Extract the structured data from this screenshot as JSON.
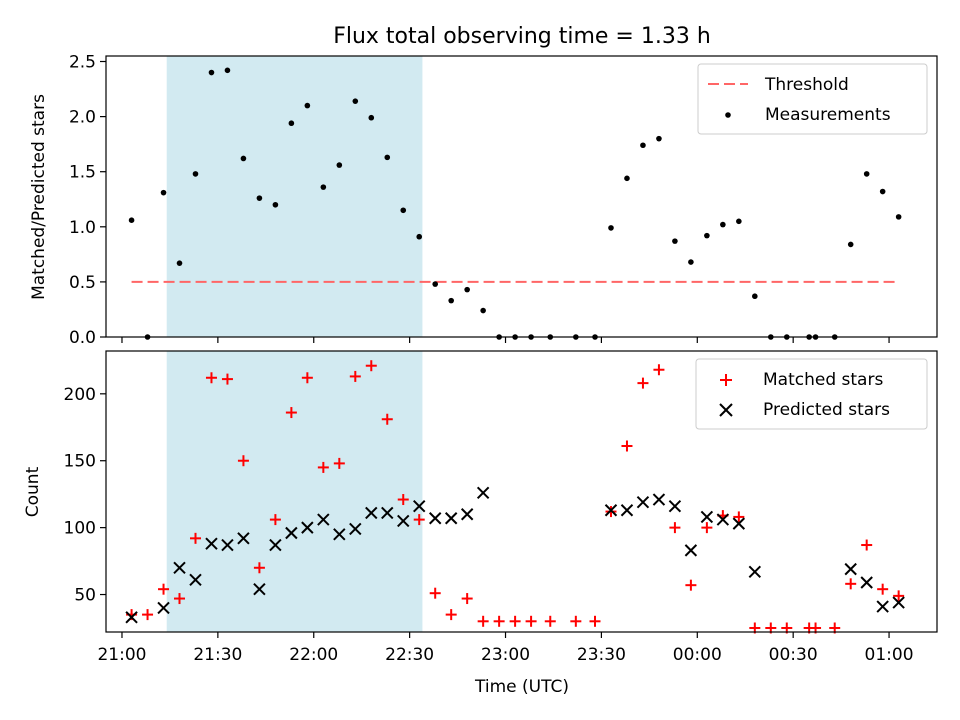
{
  "figure": {
    "title": "Flux total observing time = 1.33 h"
  },
  "colors": {
    "threshold": "#ff6666",
    "measurement": "#000000",
    "matched": "#ff0000",
    "predicted": "#000000",
    "shade": "#add8e6"
  },
  "chart_data": [
    {
      "type": "scatter",
      "ylabel": "Matched/Predicted stars",
      "ylim": [
        0,
        2.55
      ],
      "yticks": [
        "0.0",
        "0.5",
        "1.0",
        "1.5",
        "2.0",
        "2.5"
      ],
      "yticks_values": [
        0,
        0.5,
        1.0,
        1.5,
        2.0,
        2.5
      ],
      "xlim_minutes": [
        1255,
        1515
      ],
      "shaded_region_minutes": [
        1274,
        1354
      ],
      "legend": {
        "position": "top-right",
        "threshold_label": "Threshold",
        "measurements_label": "Measurements"
      },
      "threshold": {
        "value": 0.5,
        "from_minutes": 1263,
        "to_minutes": 1503
      },
      "measurements": [
        [
          1263,
          1.06
        ],
        [
          1268,
          0.0
        ],
        [
          1273,
          1.31
        ],
        [
          1278,
          0.67
        ],
        [
          1283,
          1.48
        ],
        [
          1288,
          2.4
        ],
        [
          1293,
          2.42
        ],
        [
          1298,
          1.62
        ],
        [
          1303,
          1.26
        ],
        [
          1308,
          1.2
        ],
        [
          1313,
          1.94
        ],
        [
          1318,
          2.1
        ],
        [
          1323,
          1.36
        ],
        [
          1328,
          1.56
        ],
        [
          1333,
          2.14
        ],
        [
          1338,
          1.99
        ],
        [
          1343,
          1.63
        ],
        [
          1348,
          1.15
        ],
        [
          1353,
          0.91
        ],
        [
          1358,
          0.48
        ],
        [
          1363,
          0.33
        ],
        [
          1368,
          0.43
        ],
        [
          1373,
          0.24
        ],
        [
          1378,
          0.0
        ],
        [
          1383,
          0.0
        ],
        [
          1388,
          0.0
        ],
        [
          1394,
          0.0
        ],
        [
          1402,
          0.0
        ],
        [
          1408,
          0.0
        ],
        [
          1413,
          0.99
        ],
        [
          1418,
          1.44
        ],
        [
          1423,
          1.74
        ],
        [
          1428,
          1.8
        ],
        [
          1433,
          0.87
        ],
        [
          1438,
          0.68
        ],
        [
          1443,
          0.92
        ],
        [
          1448,
          1.02
        ],
        [
          1453,
          1.05
        ],
        [
          1458,
          0.37
        ],
        [
          1463,
          0.0
        ],
        [
          1468,
          0.0
        ],
        [
          1475,
          0.0
        ],
        [
          1477,
          0.0
        ],
        [
          1483,
          0.0
        ],
        [
          1488,
          0.84
        ],
        [
          1493,
          1.48
        ],
        [
          1498,
          1.32
        ],
        [
          1503,
          1.09
        ]
      ]
    },
    {
      "type": "scatter",
      "xlabel": "Time (UTC)",
      "ylabel": "Count",
      "ylim": [
        22,
        232
      ],
      "yticks": [
        "50",
        "100",
        "150",
        "200"
      ],
      "yticks_values": [
        50,
        100,
        150,
        200
      ],
      "xlim_minutes": [
        1255,
        1515
      ],
      "xticks": [
        "21:00",
        "21:30",
        "22:00",
        "22:30",
        "23:00",
        "23:30",
        "00:00",
        "00:30",
        "01:00"
      ],
      "xticks_minutes": [
        1260,
        1290,
        1320,
        1350,
        1380,
        1410,
        1440,
        1470,
        1500
      ],
      "shaded_region_minutes": [
        1274,
        1354
      ],
      "legend": {
        "position": "top-right",
        "matched_label": "Matched stars",
        "predicted_label": "Predicted stars"
      },
      "matched": [
        [
          1263,
          35
        ],
        [
          1268,
          35
        ],
        [
          1273,
          54
        ],
        [
          1278,
          47
        ],
        [
          1283,
          92
        ],
        [
          1288,
          212
        ],
        [
          1293,
          211
        ],
        [
          1298,
          150
        ],
        [
          1303,
          70
        ],
        [
          1308,
          106
        ],
        [
          1313,
          186
        ],
        [
          1318,
          212
        ],
        [
          1323,
          145
        ],
        [
          1328,
          148
        ],
        [
          1333,
          213
        ],
        [
          1338,
          221
        ],
        [
          1343,
          181
        ],
        [
          1348,
          121
        ],
        [
          1353,
          106
        ],
        [
          1358,
          51
        ],
        [
          1363,
          35
        ],
        [
          1368,
          47
        ],
        [
          1373,
          30
        ],
        [
          1378,
          30
        ],
        [
          1383,
          30
        ],
        [
          1388,
          30
        ],
        [
          1394,
          30
        ],
        [
          1402,
          30
        ],
        [
          1408,
          30
        ],
        [
          1413,
          112
        ],
        [
          1418,
          161
        ],
        [
          1423,
          208
        ],
        [
          1428,
          218
        ],
        [
          1433,
          100
        ],
        [
          1438,
          57
        ],
        [
          1443,
          100
        ],
        [
          1448,
          109
        ],
        [
          1453,
          108
        ],
        [
          1458,
          25
        ],
        [
          1463,
          25
        ],
        [
          1468,
          25
        ],
        [
          1475,
          25
        ],
        [
          1477,
          25
        ],
        [
          1483,
          25
        ],
        [
          1488,
          58
        ],
        [
          1493,
          87
        ],
        [
          1498,
          54
        ],
        [
          1503,
          49
        ]
      ],
      "predicted": [
        [
          1263,
          33
        ],
        [
          1273,
          40
        ],
        [
          1278,
          70
        ],
        [
          1283,
          61
        ],
        [
          1288,
          88
        ],
        [
          1293,
          87
        ],
        [
          1298,
          92
        ],
        [
          1303,
          54
        ],
        [
          1308,
          87
        ],
        [
          1313,
          96
        ],
        [
          1318,
          100
        ],
        [
          1323,
          106
        ],
        [
          1328,
          95
        ],
        [
          1333,
          99
        ],
        [
          1338,
          111
        ],
        [
          1343,
          111
        ],
        [
          1348,
          105
        ],
        [
          1353,
          116
        ],
        [
          1358,
          107
        ],
        [
          1363,
          107
        ],
        [
          1368,
          110
        ],
        [
          1373,
          126
        ],
        [
          1413,
          113
        ],
        [
          1418,
          113
        ],
        [
          1423,
          119
        ],
        [
          1428,
          121
        ],
        [
          1433,
          116
        ],
        [
          1438,
          83
        ],
        [
          1443,
          108
        ],
        [
          1448,
          106
        ],
        [
          1453,
          103
        ],
        [
          1458,
          67
        ],
        [
          1488,
          69
        ],
        [
          1493,
          59
        ],
        [
          1498,
          41
        ],
        [
          1503,
          44
        ]
      ]
    }
  ]
}
